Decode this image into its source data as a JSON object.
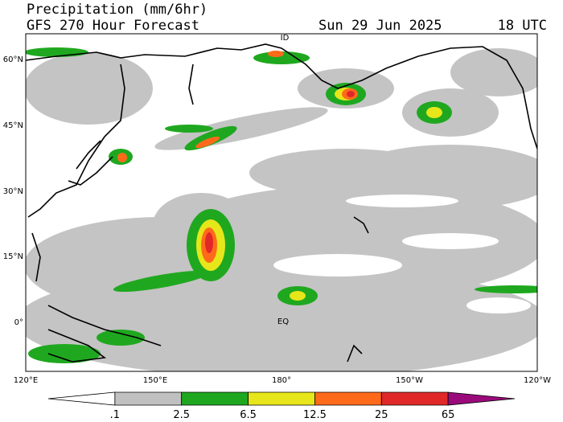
{
  "header": {
    "title": "Precipitation (mm/6hr)",
    "subtitle": "GFS 270 Hour Forecast",
    "date": "Sun 29 Jun 2025",
    "time": "18 UTC"
  },
  "map": {
    "lat_labels": [
      "60°N",
      "45°N",
      "30°N",
      "15°N",
      "0°"
    ],
    "lon_labels": [
      "120°E",
      "150°E",
      "180°",
      "150°W",
      "120°W"
    ],
    "annotations": [
      "ID",
      "EQ"
    ]
  },
  "colorbar": {
    "labels": [
      ".1",
      "2.5",
      "6.5",
      "12.5",
      "25",
      "65"
    ],
    "colors": [
      "#ffffff",
      "#c0c0c0",
      "#1fa81f",
      "#e6e61a",
      "#ff6a1a",
      "#e02828",
      "#9a0a7a"
    ]
  }
}
